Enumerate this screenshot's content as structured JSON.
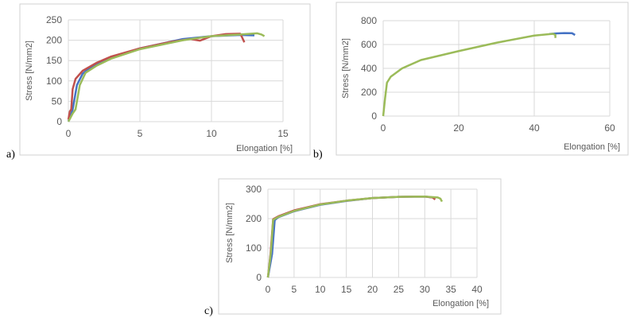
{
  "colors": {
    "blue": "#4472C4",
    "red": "#C0504D",
    "green": "#9BBB59",
    "grid": "#d9d9d9",
    "frame": "#d0d0d0"
  },
  "chart_data": [
    {
      "panel": "a)",
      "type": "line",
      "xlabel": "Elongation [%]",
      "ylabel": "Stress [N/mm2]",
      "xlim": [
        0,
        15
      ],
      "ylim": [
        0,
        250
      ],
      "xticks": [
        0,
        5,
        10,
        15
      ],
      "yticks": [
        0,
        50,
        100,
        150,
        200,
        250
      ],
      "grid": "major",
      "series": [
        {
          "name": "blue",
          "color": "#4472C4",
          "points": [
            [
              0,
              0
            ],
            [
              0.3,
              30
            ],
            [
              0.6,
              90
            ],
            [
              1,
              118
            ],
            [
              1.5,
              132
            ],
            [
              3,
              158
            ],
            [
              5,
              180
            ],
            [
              8,
              203
            ],
            [
              10,
              210
            ],
            [
              12,
              213
            ],
            [
              13,
              212
            ]
          ]
        },
        {
          "name": "red",
          "color": "#C0504D",
          "points": [
            [
              0,
              5
            ],
            [
              0.1,
              25
            ],
            [
              0.2,
              30
            ],
            [
              0.3,
              80
            ],
            [
              0.5,
              105
            ],
            [
              1,
              125
            ],
            [
              2,
              145
            ],
            [
              3,
              160
            ],
            [
              5,
              180
            ],
            [
              7,
              195
            ],
            [
              8.5,
              203
            ],
            [
              9.2,
              199
            ],
            [
              10,
              210
            ],
            [
              11,
              215
            ],
            [
              12,
              216
            ],
            [
              12.1,
              210
            ],
            [
              12.3,
              195
            ]
          ]
        },
        {
          "name": "green",
          "color": "#9BBB59",
          "points": [
            [
              0,
              0
            ],
            [
              0.3,
              20
            ],
            [
              0.5,
              30
            ],
            [
              0.8,
              90
            ],
            [
              1.2,
              120
            ],
            [
              2,
              138
            ],
            [
              3,
              155
            ],
            [
              5,
              178
            ],
            [
              8,
              200
            ],
            [
              10,
              210
            ],
            [
              12,
              214
            ],
            [
              13.2,
              217
            ],
            [
              13.5,
              214
            ],
            [
              13.7,
              210
            ]
          ]
        }
      ]
    },
    {
      "panel": "b)",
      "type": "line",
      "xlabel": "Elongation [%]",
      "ylabel": "Stress [N/mm2]",
      "xlim": [
        0,
        60
      ],
      "ylim": [
        0,
        800
      ],
      "xticks": [
        0,
        20,
        40,
        60
      ],
      "yticks": [
        0,
        200,
        400,
        600,
        800
      ],
      "grid": "major",
      "series": [
        {
          "name": "blue",
          "color": "#4472C4",
          "points": [
            [
              44,
              688
            ],
            [
              46,
              693
            ],
            [
              48,
              696
            ],
            [
              50,
              695
            ],
            [
              50.8,
              680
            ]
          ]
        },
        {
          "name": "green",
          "color": "#9BBB59",
          "points": [
            [
              0,
              0
            ],
            [
              0.5,
              150
            ],
            [
              1,
              280
            ],
            [
              2,
              330
            ],
            [
              5,
              400
            ],
            [
              10,
              470
            ],
            [
              20,
              545
            ],
            [
              30,
              615
            ],
            [
              40,
              675
            ],
            [
              45,
              690
            ],
            [
              45.6,
              680
            ],
            [
              45.6,
              655
            ]
          ]
        }
      ]
    },
    {
      "panel": "c)",
      "type": "line",
      "xlabel": "Elongation [%]",
      "ylabel": "Stress [N/mm2]",
      "xlim": [
        0,
        40
      ],
      "ylim": [
        0,
        300
      ],
      "xticks": [
        0,
        5,
        10,
        15,
        20,
        25,
        30,
        35,
        40
      ],
      "yticks": [
        0,
        100,
        200,
        300
      ],
      "grid": "major",
      "series": [
        {
          "name": "blue",
          "color": "#4472C4",
          "points": [
            [
              0,
              0
            ],
            [
              0.8,
              80
            ],
            [
              1.3,
              195
            ],
            [
              2,
              205
            ],
            [
              5,
              225
            ],
            [
              10,
              247
            ],
            [
              15,
              260
            ],
            [
              20,
              270
            ],
            [
              25,
              274
            ],
            [
              30,
              275
            ],
            [
              31.5,
              272
            ]
          ]
        },
        {
          "name": "red",
          "color": "#C0504D",
          "points": [
            [
              0,
              0
            ],
            [
              0.5,
              80
            ],
            [
              1,
              198
            ],
            [
              2,
              208
            ],
            [
              5,
              228
            ],
            [
              10,
              249
            ],
            [
              15,
              261
            ],
            [
              20,
              270
            ],
            [
              25,
              274
            ],
            [
              30,
              275
            ],
            [
              31.5,
              272
            ],
            [
              32,
              265
            ]
          ]
        },
        {
          "name": "green",
          "color": "#9BBB59",
          "points": [
            [
              0,
              0
            ],
            [
              0.6,
              90
            ],
            [
              1,
              196
            ],
            [
              2,
              206
            ],
            [
              5,
              226
            ],
            [
              10,
              248
            ],
            [
              15,
              261
            ],
            [
              20,
              270
            ],
            [
              25,
              274
            ],
            [
              30,
              275
            ],
            [
              32.5,
              272
            ],
            [
              33,
              268
            ],
            [
              33.3,
              258
            ]
          ]
        }
      ]
    }
  ]
}
